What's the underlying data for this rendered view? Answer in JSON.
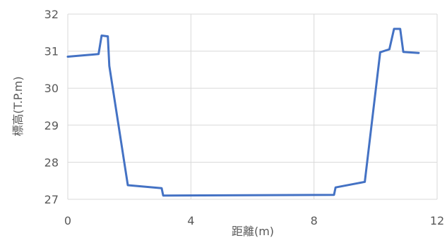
{
  "chart_data": {
    "type": "line",
    "title": "",
    "xlabel": "距離(m)",
    "ylabel": "標高(T.P.m)",
    "xlim": [
      0,
      12
    ],
    "ylim": [
      27,
      32
    ],
    "xticks": [
      0,
      4,
      8,
      12
    ],
    "yticks": [
      27,
      28,
      29,
      30,
      31,
      32
    ],
    "grid": true,
    "legend": "none",
    "color": "#4472c4",
    "series": [
      {
        "x": [
          0,
          1.0,
          1.1,
          1.3,
          1.35,
          1.95,
          3.05,
          3.1,
          8.65,
          8.7,
          9.65,
          10.15,
          10.45,
          10.6,
          10.8,
          10.9,
          11.4
        ],
        "y": [
          30.85,
          30.92,
          31.42,
          31.4,
          30.6,
          27.38,
          27.3,
          27.1,
          27.12,
          27.32,
          27.47,
          30.97,
          31.05,
          31.6,
          31.6,
          30.98,
          30.95
        ]
      }
    ]
  }
}
